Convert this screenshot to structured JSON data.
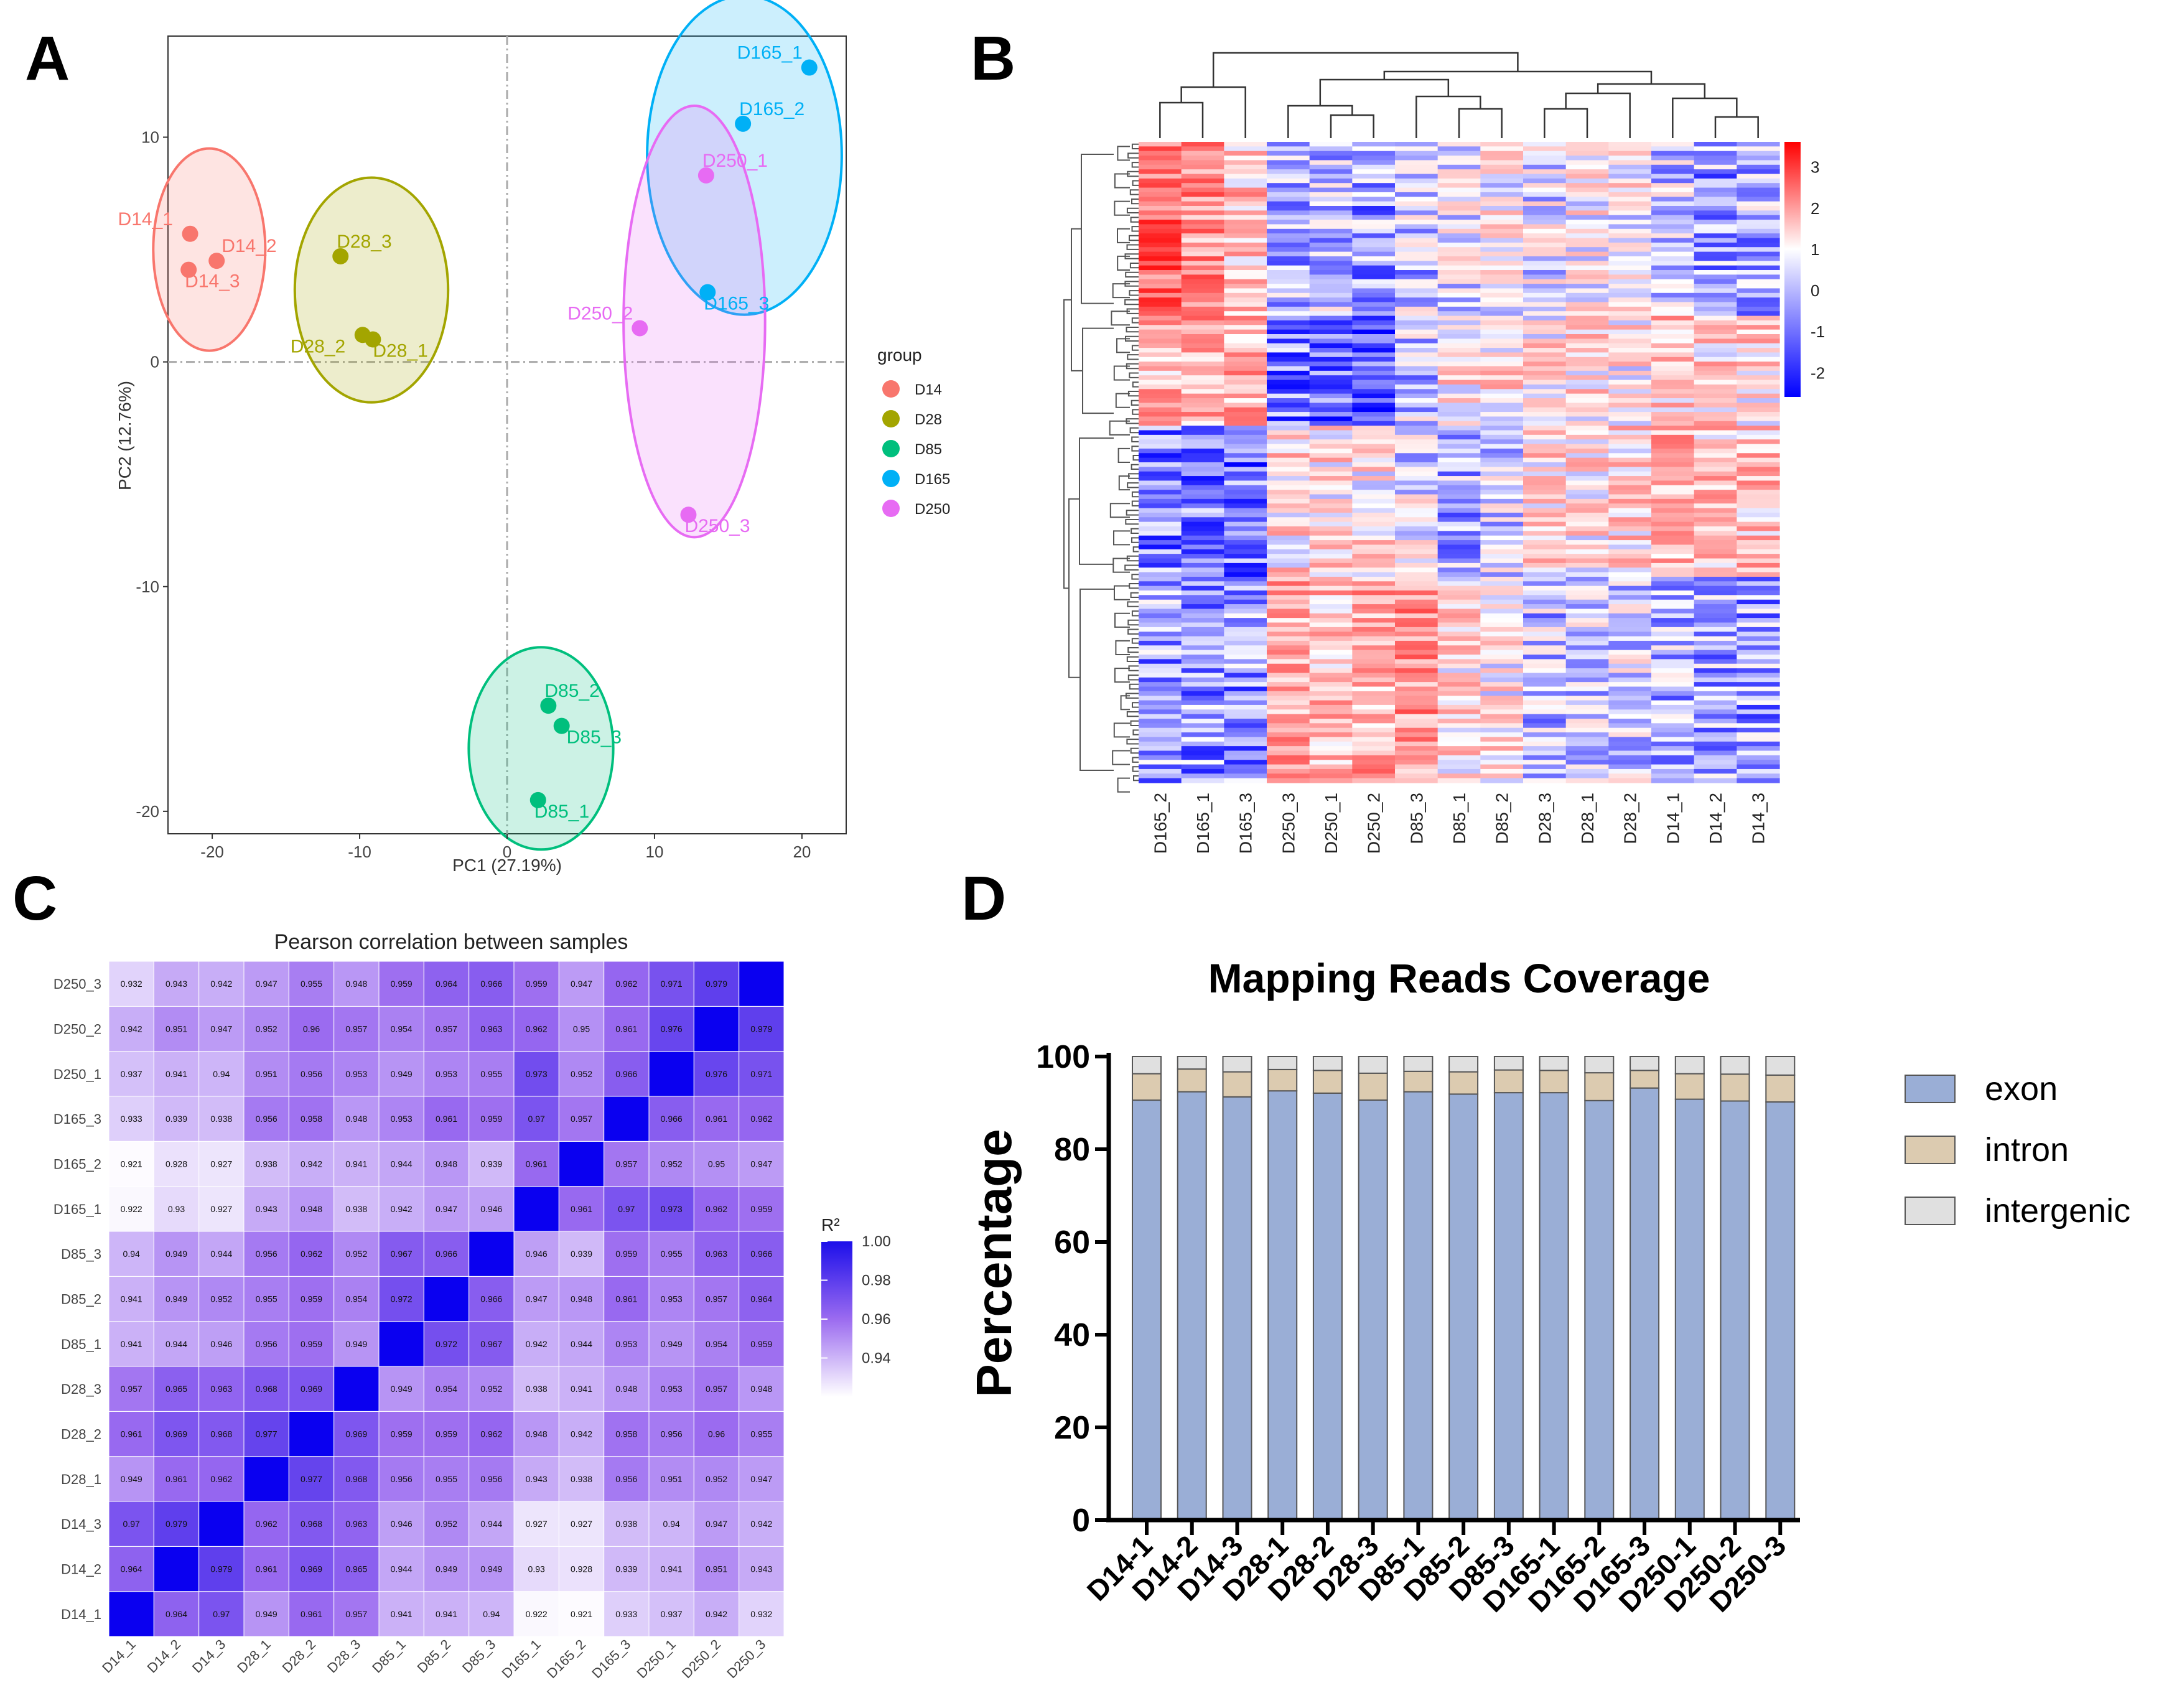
{
  "panels": {
    "a": "A",
    "b": "B",
    "c": "C",
    "d": "D"
  },
  "chart_data": [
    {
      "type": "scatter",
      "id": "pca",
      "xlabel": "PC1 (27.19%)",
      "ylabel": "PC2 (12.76%)",
      "xlim": [
        -23,
        23
      ],
      "ylim": [
        -21,
        14.5
      ],
      "xticks": [
        -20,
        -10,
        0,
        10,
        20
      ],
      "yticks": [
        -20,
        -10,
        0,
        10
      ],
      "xtick_labels": [
        "-20",
        "-10",
        "0",
        "10",
        "20"
      ],
      "ytick_labels": [
        "-20",
        "-10",
        "0",
        "10"
      ],
      "legend_title": "group",
      "groups": [
        {
          "name": "D14",
          "color": "#F8766D",
          "ellipse": {
            "cx": -20.2,
            "cy": 5.0,
            "rx": 3.8,
            "ry": 4.5
          },
          "points": [
            {
              "label": "D14_1",
              "x": -21.5,
              "y": 5.7
            },
            {
              "label": "D14_2",
              "x": -19.7,
              "y": 4.5
            },
            {
              "label": "D14_3",
              "x": -21.6,
              "y": 4.1
            }
          ]
        },
        {
          "name": "D28",
          "color": "#A3A500",
          "ellipse": {
            "cx": -9.2,
            "cy": 3.2,
            "rx": 5.2,
            "ry": 5.0
          },
          "points": [
            {
              "label": "D28_3",
              "x": -11.3,
              "y": 4.7
            },
            {
              "label": "D28_2",
              "x": -9.8,
              "y": 1.2
            },
            {
              "label": "D28_1",
              "x": -9.1,
              "y": 1.0
            }
          ]
        },
        {
          "name": "D85",
          "color": "#00BF7D",
          "ellipse": {
            "cx": 2.3,
            "cy": -17.2,
            "rx": 4.9,
            "ry": 4.5
          },
          "points": [
            {
              "label": "D85_2",
              "x": 2.8,
              "y": -15.3
            },
            {
              "label": "D85_3",
              "x": 3.7,
              "y": -16.2
            },
            {
              "label": "D85_1",
              "x": 2.1,
              "y": -19.5
            }
          ]
        },
        {
          "name": "D165",
          "color": "#00B0F6",
          "ellipse": {
            "cx": 16.1,
            "cy": 9.2,
            "rx": 6.6,
            "ry": 7.1
          },
          "points": [
            {
              "label": "D165_1",
              "x": 20.5,
              "y": 13.1
            },
            {
              "label": "D165_2",
              "x": 16.0,
              "y": 10.6
            },
            {
              "label": "D165_3",
              "x": 13.6,
              "y": 3.1
            }
          ]
        },
        {
          "name": "D250",
          "color": "#E76BF3",
          "ellipse": {
            "cx": 12.7,
            "cy": 1.8,
            "rx": 4.8,
            "ry": 9.6
          },
          "points": [
            {
              "label": "D250_1",
              "x": 13.5,
              "y": 8.3
            },
            {
              "label": "D250_2",
              "x": 9.0,
              "y": 1.5
            },
            {
              "label": "D250_3",
              "x": 12.3,
              "y": -6.8
            }
          ]
        }
      ]
    },
    {
      "type": "heatmap",
      "id": "cluster-heatmap",
      "columns": [
        "D165_2",
        "D165_1",
        "D165_3",
        "D250_3",
        "D250_1",
        "D250_2",
        "D85_3",
        "D85_1",
        "D85_2",
        "D28_3",
        "D28_1",
        "D28_2",
        "D14_1",
        "D14_2",
        "D14_3"
      ],
      "scale_min": -2.6,
      "scale_max": 3.6,
      "scale_ticks": [
        "3",
        "2",
        "1",
        "0",
        "-1",
        "-2"
      ],
      "row_count": 140
    },
    {
      "type": "heatmap",
      "id": "pearson",
      "title": "Pearson correlation between samples",
      "legend_title": "R²",
      "legend_ticks": [
        "1.00",
        "0.98",
        "0.96",
        "0.94"
      ],
      "scale_min": 0.92,
      "scale_max": 1.0,
      "samples": [
        "D14_1",
        "D14_2",
        "D14_3",
        "D28_1",
        "D28_2",
        "D28_3",
        "D85_1",
        "D85_2",
        "D85_3",
        "D165_1",
        "D165_2",
        "D165_3",
        "D250_1",
        "D250_2",
        "D250_3"
      ],
      "matrix": [
        [
          1,
          0.964,
          0.97,
          0.949,
          0.961,
          0.957,
          0.941,
          0.941,
          0.94,
          0.922,
          0.921,
          0.933,
          0.937,
          0.942,
          0.932
        ],
        [
          0.964,
          1,
          0.979,
          0.961,
          0.969,
          0.965,
          0.944,
          0.949,
          0.949,
          0.93,
          0.928,
          0.939,
          0.941,
          0.951,
          0.943
        ],
        [
          0.97,
          0.979,
          1,
          0.962,
          0.968,
          0.963,
          0.946,
          0.952,
          0.944,
          0.927,
          0.927,
          0.938,
          0.94,
          0.947,
          0.942
        ],
        [
          0.949,
          0.961,
          0.962,
          1,
          0.977,
          0.968,
          0.956,
          0.955,
          0.956,
          0.943,
          0.938,
          0.956,
          0.951,
          0.952,
          0.947
        ],
        [
          0.961,
          0.969,
          0.968,
          0.977,
          1,
          0.969,
          0.959,
          0.959,
          0.962,
          0.948,
          0.942,
          0.958,
          0.956,
          0.96,
          0.955
        ],
        [
          0.957,
          0.965,
          0.963,
          0.968,
          0.969,
          1,
          0.949,
          0.954,
          0.952,
          0.938,
          0.941,
          0.948,
          0.953,
          0.957,
          0.948
        ],
        [
          0.941,
          0.944,
          0.946,
          0.956,
          0.959,
          0.949,
          1,
          0.972,
          0.967,
          0.942,
          0.944,
          0.953,
          0.949,
          0.954,
          0.959
        ],
        [
          0.941,
          0.949,
          0.952,
          0.955,
          0.959,
          0.954,
          0.972,
          1,
          0.966,
          0.947,
          0.948,
          0.961,
          0.953,
          0.957,
          0.964
        ],
        [
          0.94,
          0.949,
          0.944,
          0.956,
          0.962,
          0.952,
          0.967,
          0.966,
          1,
          0.946,
          0.939,
          0.959,
          0.955,
          0.963,
          0.966
        ],
        [
          0.922,
          0.93,
          0.927,
          0.943,
          0.948,
          0.938,
          0.942,
          0.947,
          0.946,
          1,
          0.961,
          0.97,
          0.973,
          0.962,
          0.959
        ],
        [
          0.921,
          0.928,
          0.927,
          0.938,
          0.942,
          0.941,
          0.944,
          0.948,
          0.939,
          0.961,
          1,
          0.957,
          0.952,
          0.95,
          0.947
        ],
        [
          0.933,
          0.939,
          0.938,
          0.956,
          0.958,
          0.948,
          0.953,
          0.961,
          0.959,
          0.97,
          0.957,
          1,
          0.966,
          0.961,
          0.962
        ],
        [
          0.937,
          0.941,
          0.94,
          0.951,
          0.956,
          0.953,
          0.949,
          0.953,
          0.955,
          0.973,
          0.952,
          0.966,
          1,
          0.976,
          0.971
        ],
        [
          0.942,
          0.951,
          0.947,
          0.952,
          0.96,
          0.957,
          0.954,
          0.957,
          0.963,
          0.962,
          0.95,
          0.961,
          0.976,
          1,
          0.979
        ],
        [
          0.932,
          0.943,
          0.942,
          0.947,
          0.955,
          0.948,
          0.959,
          0.964,
          0.966,
          0.959,
          0.947,
          0.962,
          0.971,
          0.979,
          1
        ]
      ]
    },
    {
      "type": "bar",
      "id": "mapping-coverage",
      "stacked": true,
      "title": "Mapping Reads Coverage",
      "ylabel": "Percentage",
      "ylim": [
        0,
        100
      ],
      "yticks": [
        0,
        20,
        40,
        60,
        80,
        100
      ],
      "ytick_labels": [
        "0",
        "20",
        "40",
        "60",
        "80",
        "100"
      ],
      "categories": [
        "D14-1",
        "D14-2",
        "D14-3",
        "D28-1",
        "D28-2",
        "D28-3",
        "D85-1",
        "D85-2",
        "D85-3",
        "D165-1",
        "D165-2",
        "D165-3",
        "D250-1",
        "D250-2",
        "D250-3"
      ],
      "series": [
        {
          "name": "exon",
          "color": "#9AAED6",
          "values": [
            90.6,
            92.4,
            91.3,
            92.6,
            92.1,
            90.6,
            92.4,
            91.9,
            92.2,
            92.2,
            90.5,
            93.2,
            90.8,
            90.4,
            90.2
          ]
        },
        {
          "name": "intron",
          "color": "#DCCBB0",
          "values": [
            5.7,
            4.9,
            5.4,
            4.6,
            4.9,
            5.8,
            4.4,
            4.8,
            4.9,
            4.8,
            6.0,
            3.8,
            5.5,
            5.8,
            5.8
          ]
        },
        {
          "name": "intergenic",
          "color": "#E0E0E0",
          "values": [
            3.7,
            2.7,
            3.3,
            2.8,
            3.0,
            3.6,
            3.2,
            3.3,
            2.9,
            3.0,
            3.5,
            3.0,
            3.7,
            3.8,
            4.0
          ]
        }
      ]
    }
  ]
}
